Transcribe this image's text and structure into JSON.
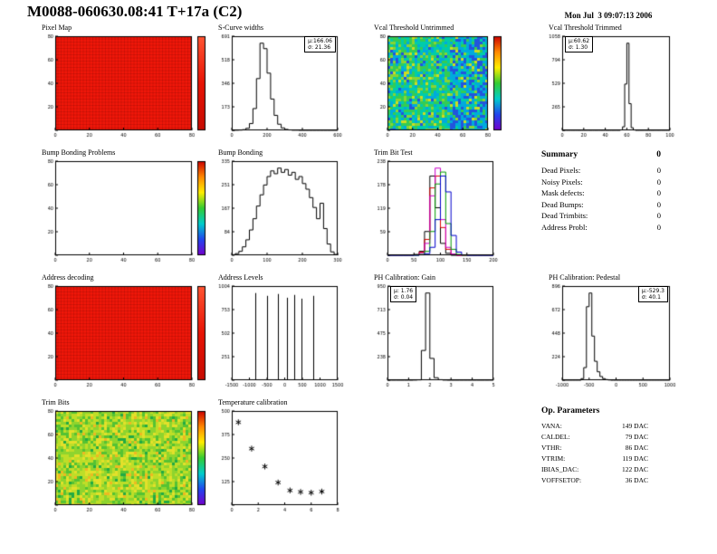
{
  "header": {
    "title": "M0088-060630.08:41 T+17a (C2)",
    "datetime": "Mon Jul  3 09:07:13 2006"
  },
  "summary": {
    "title": "Summary",
    "total": "0",
    "items": [
      {
        "label": "Dead Pixels:",
        "value": "0"
      },
      {
        "label": "Noisy Pixels:",
        "value": "0"
      },
      {
        "label": "Mask defects:",
        "value": "0"
      },
      {
        "label": "Dead Bumps:",
        "value": "0"
      },
      {
        "label": "Dead Trimbits:",
        "value": "0"
      },
      {
        "label": "Address Probl:",
        "value": "0"
      }
    ]
  },
  "op_parameters": {
    "title": "Op. Parameters",
    "items": [
      {
        "label": "VANA:",
        "value": "149 DAC"
      },
      {
        "label": "CALDEL:",
        "value": "79 DAC"
      },
      {
        "label": "VTHR:",
        "value": "86 DAC"
      },
      {
        "label": "VTRIM:",
        "value": "119 DAC"
      },
      {
        "label": "IBIAS_DAC:",
        "value": "122 DAC"
      },
      {
        "label": "VOFFSETOP:",
        "value": "36 DAC"
      }
    ]
  },
  "chart_data": [
    {
      "id": "pixel-map",
      "type": "heatmap",
      "style": "solid",
      "title": "Pixel Map",
      "base_color": "#f2170a",
      "grid_color": "#6b0b03",
      "colorbar": [
        "#ff5533",
        "#e81405",
        "#c60b02"
      ],
      "xlim": [
        0,
        80
      ],
      "ylim": [
        0,
        80
      ],
      "xdiv": 4
    },
    {
      "id": "s-curve-widths",
      "type": "histogram",
      "title": "S-Curve widths",
      "xlim": [
        0,
        600
      ],
      "xdiv": 3,
      "values": [
        0,
        1,
        2,
        5,
        15,
        50,
        160,
        380,
        640,
        600,
        420,
        230,
        110,
        45,
        18,
        7,
        3,
        1,
        1,
        0,
        0,
        0,
        0,
        0,
        0,
        0,
        0,
        0,
        0,
        0
      ],
      "stats": [
        "μ:166.06",
        "σ: 21.36"
      ]
    },
    {
      "id": "vcal-threshold-untrimmed",
      "type": "heatmap",
      "style": "noise",
      "title": "Vcal Threshold Untrimmed",
      "palette": [
        "#2255dd",
        "#00aadd",
        "#00ccaa",
        "#33cc55",
        "#88d433",
        "#ccdd22"
      ],
      "blue_region_right": true,
      "colorbar": [
        "#cc0000",
        "#ff8800",
        "#ffee00",
        "#33cc33",
        "#00cccc",
        "#2244ee",
        "#7700cc"
      ],
      "xlim": [
        0,
        80
      ],
      "ylim": [
        0,
        80
      ],
      "xdiv": 4
    },
    {
      "id": "vcal-threshold-trimmed",
      "type": "histogram",
      "title": "Vcal Threshold Trimmed",
      "xlim": [
        0,
        100
      ],
      "xdiv": 5,
      "values": [
        0,
        0,
        0,
        0,
        0,
        0,
        0,
        0,
        0,
        0,
        0,
        0,
        0,
        0,
        0,
        0,
        0,
        0,
        0,
        0,
        0,
        0,
        0,
        0,
        0,
        0,
        0,
        5,
        40,
        520,
        980,
        300,
        30,
        4,
        0,
        0,
        0,
        0,
        0,
        0,
        0,
        0,
        0,
        0,
        0,
        0,
        0,
        0,
        0,
        0
      ],
      "stats": [
        "μ:60.62",
        "σ: 1.30"
      ]
    },
    {
      "id": "bump-bonding-problems",
      "type": "heatmap",
      "style": "empty",
      "title": "Bump Bonding Problems",
      "colorbar": [
        "#cc0000",
        "#ff8800",
        "#ffee00",
        "#33cc33",
        "#00cccc",
        "#2244ee",
        "#7700cc"
      ],
      "xlim": [
        0,
        80
      ],
      "ylim": [
        0,
        80
      ],
      "xdiv": 4
    },
    {
      "id": "bump-bonding",
      "type": "histogram",
      "title": "Bump Bonding",
      "xlim": [
        0,
        300
      ],
      "xdiv": 3,
      "values": [
        2,
        6,
        14,
        30,
        55,
        90,
        130,
        175,
        215,
        250,
        280,
        300,
        290,
        310,
        295,
        305,
        285,
        295,
        270,
        280,
        255,
        235,
        205,
        170,
        130,
        185,
        95,
        40,
        12,
        3
      ]
    },
    {
      "id": "trim-bit-test",
      "type": "multi_histogram",
      "title": "Trim Bit Test",
      "xlim": [
        0,
        200
      ],
      "xdiv": 4,
      "series": [
        {
          "name": "trim-bit-black",
          "color": "#000000",
          "values": [
            0,
            0,
            0,
            0,
            0,
            2,
            10,
            60,
            200,
            120,
            30,
            5,
            0,
            0,
            0,
            0,
            0,
            0,
            0,
            0
          ]
        },
        {
          "name": "trim-bit-red",
          "color": "#dd0000",
          "values": [
            0,
            0,
            0,
            0,
            0,
            1,
            8,
            40,
            170,
            200,
            70,
            15,
            2,
            0,
            0,
            0,
            0,
            0,
            0,
            0
          ]
        },
        {
          "name": "trim-bit-magenta",
          "color": "#cc00cc",
          "values": [
            0,
            0,
            0,
            0,
            0,
            1,
            5,
            30,
            150,
            220,
            90,
            20,
            3,
            0,
            0,
            0,
            0,
            0,
            0,
            0
          ]
        },
        {
          "name": "trim-bit-green",
          "color": "#009900",
          "values": [
            0,
            0,
            0,
            0,
            0,
            0,
            2,
            10,
            60,
            180,
            210,
            80,
            15,
            2,
            0,
            0,
            0,
            0,
            0,
            0
          ]
        },
        {
          "name": "trim-bit-blue",
          "color": "#0000cc",
          "values": [
            0,
            0,
            0,
            0,
            0,
            0,
            1,
            4,
            20,
            90,
            200,
            160,
            50,
            8,
            1,
            0,
            0,
            0,
            0,
            0
          ]
        }
      ]
    },
    {
      "id": "address-decoding",
      "type": "heatmap",
      "style": "solid",
      "title": "Address decoding",
      "base_color": "#f2170a",
      "grid_color": "#6b0b03",
      "colorbar": [
        "#ff5533",
        "#e81405",
        "#c60b02"
      ],
      "xlim": [
        0,
        80
      ],
      "ylim": [
        0,
        80
      ],
      "xdiv": 4
    },
    {
      "id": "address-levels",
      "type": "spikes",
      "title": "Address Levels",
      "xlim": [
        -1500,
        1500
      ],
      "xdiv": 6,
      "positions": [
        -840,
        -510,
        -180,
        60,
        270,
        480,
        810
      ],
      "heights": [
        930,
        900,
        920,
        880,
        910,
        870,
        900
      ]
    },
    {
      "id": "ph-calibration-gain",
      "type": "histogram",
      "title": "PH Calibration: Gain",
      "xlim": [
        0,
        5
      ],
      "xdiv": 5,
      "values": [
        0,
        0,
        0,
        0,
        0,
        0,
        1,
        3,
        300,
        880,
        220,
        25,
        5,
        1,
        0,
        0,
        0,
        0,
        0,
        0,
        0,
        0,
        0,
        0,
        0
      ],
      "stats": [
        "μ: 1.76",
        "σ: 0.04"
      ]
    },
    {
      "id": "ph-calibration-pedestal",
      "type": "histogram",
      "title": "PH Calibration: Pedestal",
      "xlim": [
        -1000,
        1000
      ],
      "xdiv": 4,
      "values": [
        0,
        0,
        0,
        0,
        0,
        0,
        0,
        15,
        120,
        700,
        830,
        420,
        180,
        80,
        35,
        15,
        6,
        2,
        0,
        0,
        0,
        0,
        0,
        0,
        0,
        0,
        0,
        0,
        0,
        0,
        0,
        0,
        0,
        0,
        0,
        0,
        0,
        0,
        0,
        0
      ],
      "stats": [
        "μ:-529.3",
        "σ: 40.1"
      ]
    },
    {
      "id": "trim-bits",
      "type": "heatmap",
      "style": "noise",
      "title": "Trim Bits",
      "palette": [
        "#22aa44",
        "#55c233",
        "#8ed42e",
        "#bede28",
        "#e3e02a",
        "#eeb822"
      ],
      "colorbar": [
        "#cc0000",
        "#ff8800",
        "#ffee00",
        "#33cc33",
        "#00cccc",
        "#2244ee",
        "#7700cc"
      ],
      "xlim": [
        0,
        80
      ],
      "ylim": [
        0,
        80
      ],
      "xdiv": 4
    },
    {
      "id": "temperature-calibration",
      "type": "scatter",
      "title": "Temperature calibration",
      "marker": "asterisk",
      "xlim": [
        0,
        8
      ],
      "xdiv": 4,
      "ylim": [
        0,
        500
      ],
      "x": [
        0.5,
        1.5,
        2.5,
        3.5,
        4.4,
        5.2,
        6.0,
        6.8
      ],
      "y": [
        440,
        300,
        205,
        120,
        78,
        70,
        66,
        72
      ]
    }
  ]
}
